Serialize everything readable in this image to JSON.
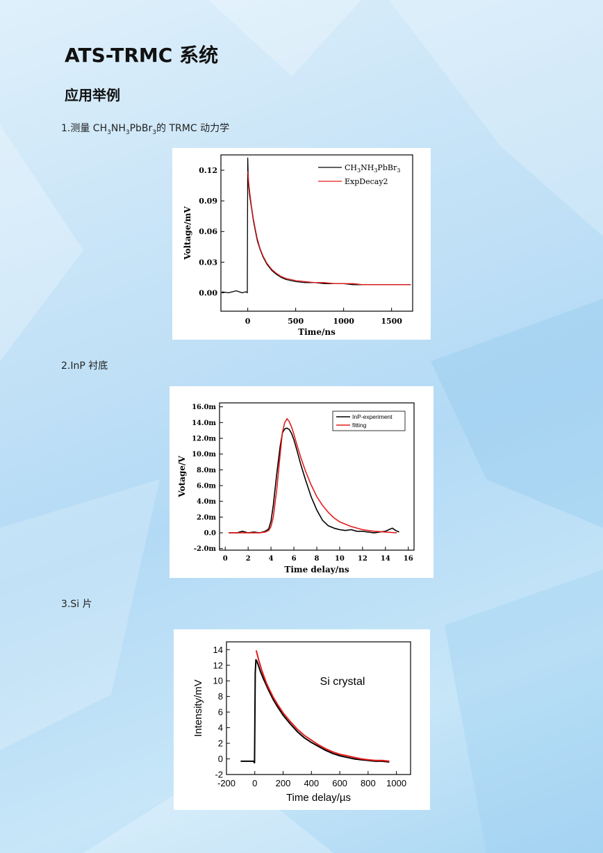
{
  "page": {
    "title": "ATS-TRMC 系统",
    "subtitle": "应用举例"
  },
  "sections": [
    {
      "caption_prefix": "1.测量 CH",
      "caption_rest": "的 TRMC 动力学",
      "formula_parts": [
        "CH",
        "3",
        "NH",
        "3",
        "PbBr",
        "3"
      ]
    },
    {
      "caption": "2.InP 衬底"
    },
    {
      "caption": "3.Si 片"
    }
  ],
  "chart_data": [
    {
      "type": "line",
      "title": "",
      "xlabel": "Time/ns",
      "ylabel": "Voltage/mV",
      "xlim": [
        -280,
        1720
      ],
      "ylim": [
        -0.018,
        0.135
      ],
      "xticks": [
        0,
        500,
        1000,
        1500
      ],
      "xtick_labels": [
        "0",
        "500",
        "1000",
        "1500"
      ],
      "yticks": [
        0.0,
        0.03,
        0.06,
        0.09,
        0.12
      ],
      "ytick_labels": [
        "0.00",
        "0.03",
        "0.06",
        "0.09",
        "0.12"
      ],
      "legend_position": "top-right",
      "series": [
        {
          "name": "CH3NH3PbBr3",
          "color": "#000000",
          "x": [
            -270,
            -200,
            -120,
            -60,
            -20,
            -5,
            0,
            5,
            10,
            20,
            40,
            60,
            80,
            100,
            130,
            160,
            200,
            250,
            300,
            350,
            400,
            500,
            600,
            700,
            800,
            900,
            1000,
            1100,
            1200,
            1300,
            1400,
            1500,
            1600,
            1700
          ],
          "y": [
            0.001,
            0.0,
            0.002,
            0.0,
            0.001,
            0.0,
            0.132,
            0.115,
            0.104,
            0.095,
            0.082,
            0.07,
            0.06,
            0.051,
            0.042,
            0.035,
            0.028,
            0.022,
            0.018,
            0.015,
            0.013,
            0.011,
            0.01,
            0.01,
            0.009,
            0.009,
            0.009,
            0.008,
            0.008,
            0.008,
            0.008,
            0.008,
            0.008,
            0.008
          ]
        },
        {
          "name": "ExpDecay2",
          "color": "#e41a1c",
          "x": [
            0,
            10,
            20,
            40,
            60,
            80,
            100,
            130,
            160,
            200,
            250,
            300,
            350,
            400,
            500,
            600,
            700,
            800,
            900,
            1000,
            1100,
            1200,
            1300,
            1400,
            1500,
            1600,
            1700
          ],
          "y": [
            0.119,
            0.108,
            0.099,
            0.084,
            0.072,
            0.062,
            0.053,
            0.043,
            0.036,
            0.029,
            0.023,
            0.019,
            0.016,
            0.014,
            0.012,
            0.011,
            0.01,
            0.01,
            0.009,
            0.009,
            0.009,
            0.008,
            0.008,
            0.008,
            0.008,
            0.008,
            0.008
          ]
        }
      ]
    },
    {
      "type": "line",
      "title": "",
      "xlabel": "Time delay/ns",
      "ylabel": "Votage/V",
      "xlim": [
        -0.5,
        16.5
      ],
      "ylim": [
        -2.2,
        16.5
      ],
      "xticks": [
        0,
        2,
        4,
        6,
        8,
        10,
        12,
        14,
        16
      ],
      "xtick_labels": [
        "0",
        "2",
        "4",
        "6",
        "8",
        "10",
        "12",
        "14",
        "16"
      ],
      "yticks": [
        -2,
        0,
        2,
        4,
        6,
        8,
        10,
        12,
        14,
        16
      ],
      "ytick_labels": [
        "-2.0m",
        "0.0",
        "2.0m",
        "4.0m",
        "6.0m",
        "8.0m",
        "10.0m",
        "12.0m",
        "14.0m",
        "16.0m"
      ],
      "legend_position": "top-right",
      "series": [
        {
          "name": "InP-experiment",
          "color": "#000000",
          "x": [
            0.3,
            1,
            1.5,
            2,
            2.5,
            3,
            3.5,
            3.8,
            4.0,
            4.2,
            4.5,
            4.8,
            5.0,
            5.2,
            5.4,
            5.6,
            5.8,
            6.0,
            6.3,
            6.6,
            7,
            7.5,
            8,
            8.5,
            9,
            9.5,
            10,
            10.5,
            11,
            11.5,
            12,
            12.5,
            13,
            13.5,
            14,
            14.3,
            14.6,
            14.9,
            15.2
          ],
          "y": [
            0.0,
            0.0,
            0.2,
            0.0,
            0.1,
            0.0,
            0.2,
            0.5,
            1.5,
            3.5,
            7.5,
            11.0,
            12.7,
            13.2,
            13.3,
            13.1,
            12.6,
            11.8,
            10.3,
            8.7,
            6.8,
            4.6,
            2.9,
            1.6,
            0.9,
            0.6,
            0.4,
            0.3,
            0.4,
            0.2,
            0.2,
            0.1,
            0.0,
            0.1,
            0.2,
            0.4,
            0.6,
            0.3,
            0.1
          ]
        },
        {
          "name": "fitting",
          "color": "#e41a1c",
          "x": [
            0.3,
            1,
            2,
            3,
            3.5,
            3.8,
            4.0,
            4.2,
            4.5,
            4.8,
            5.0,
            5.2,
            5.4,
            5.6,
            5.8,
            6.0,
            6.3,
            6.6,
            7,
            7.5,
            8,
            8.5,
            9,
            9.5,
            10,
            11,
            12,
            13,
            14,
            15
          ],
          "y": [
            0.0,
            0.0,
            0.0,
            0.0,
            0.1,
            0.3,
            0.8,
            2.0,
            5.5,
            10.0,
            12.8,
            14.0,
            14.5,
            14.1,
            13.4,
            12.5,
            11.0,
            9.6,
            7.9,
            6.1,
            4.6,
            3.5,
            2.6,
            1.9,
            1.4,
            0.8,
            0.4,
            0.2,
            0.1,
            0.0
          ]
        }
      ]
    },
    {
      "type": "line",
      "title": "",
      "xlabel": "Time delay/µs",
      "ylabel": "Intensity/mV",
      "annotation": "Si crystal",
      "xlim": [
        -200,
        1100
      ],
      "ylim": [
        -2,
        15
      ],
      "xticks": [
        -200,
        0,
        200,
        400,
        600,
        800,
        1000
      ],
      "xtick_labels": [
        "-200",
        "0",
        "200",
        "400",
        "600",
        "800",
        "1000"
      ],
      "yticks": [
        -2,
        0,
        2,
        4,
        6,
        8,
        10,
        12,
        14
      ],
      "ytick_labels": [
        "-2",
        "0",
        "2",
        "4",
        "6",
        "8",
        "10",
        "12",
        "14"
      ],
      "series": [
        {
          "name": "",
          "color": "#000000",
          "x": [
            -100,
            -60,
            -30,
            -10,
            -2,
            0,
            3,
            8,
            15,
            25,
            40,
            60,
            80,
            100,
            130,
            160,
            200,
            250,
            300,
            350,
            400,
            450,
            500,
            550,
            600,
            650,
            700,
            750,
            800,
            850,
            900,
            950
          ],
          "y": [
            -0.3,
            -0.3,
            -0.3,
            -0.3,
            -0.5,
            4.0,
            11.0,
            12.7,
            12.5,
            12.0,
            11.2,
            10.3,
            9.5,
            8.7,
            7.6,
            6.7,
            5.6,
            4.5,
            3.5,
            2.7,
            2.1,
            1.6,
            1.1,
            0.7,
            0.4,
            0.2,
            0.0,
            -0.1,
            -0.2,
            -0.3,
            -0.3,
            -0.4
          ]
        },
        {
          "name": "",
          "color": "#e41a1c",
          "x": [
            10,
            30,
            50,
            80,
            100,
            130,
            160,
            200,
            250,
            300,
            350,
            400,
            450,
            500,
            550,
            600,
            650,
            700,
            750,
            800,
            850,
            900,
            950
          ],
          "y": [
            13.9,
            12.5,
            11.3,
            9.8,
            9.0,
            7.9,
            7.0,
            5.9,
            4.8,
            3.8,
            3.0,
            2.4,
            1.8,
            1.3,
            0.9,
            0.6,
            0.4,
            0.2,
            0.0,
            -0.1,
            -0.2,
            -0.2,
            -0.3
          ]
        }
      ]
    }
  ]
}
